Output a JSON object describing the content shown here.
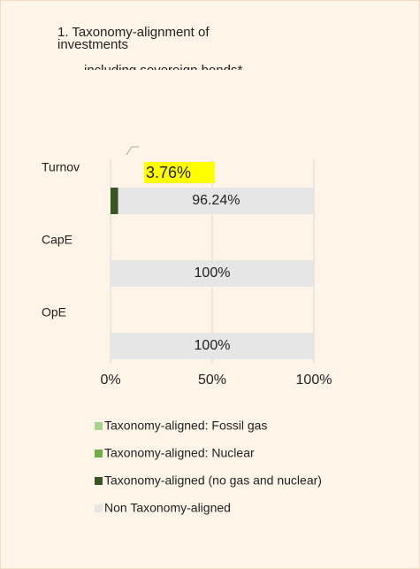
{
  "chart_data": {
    "type": "bar",
    "orientation": "horizontal",
    "stacked": true,
    "title": "1. Taxonomy-alignment of investments",
    "subtitle": "including sovereign bonds*",
    "categories": [
      "Turnov",
      "CapE",
      "OpE"
    ],
    "series": [
      {
        "name": "Taxonomy-aligned: Fossil gas",
        "color": "#a9d18e",
        "values": [
          0,
          0,
          0
        ]
      },
      {
        "name": "Taxonomy-aligned:  Nuclear",
        "color": "#70ad47",
        "values": [
          0,
          0,
          0
        ]
      },
      {
        "name": "Taxonomy-aligned (no gas and nuclear)",
        "color": "#375623",
        "values": [
          3.76,
          0,
          0
        ],
        "value_labels": [
          "3.76%",
          null,
          null
        ]
      },
      {
        "name": "Non Taxonomy-aligned",
        "color": "#e7e6e6",
        "values": [
          96.24,
          100,
          100
        ],
        "value_labels": [
          "96.24%",
          "100%",
          "100%"
        ]
      }
    ],
    "xlim": [
      0,
      100
    ],
    "xticks": [
      {
        "value": 0,
        "label": "0%"
      },
      {
        "value": 50,
        "label": "50%"
      },
      {
        "value": 100,
        "label": "100%"
      }
    ],
    "grid": true
  }
}
